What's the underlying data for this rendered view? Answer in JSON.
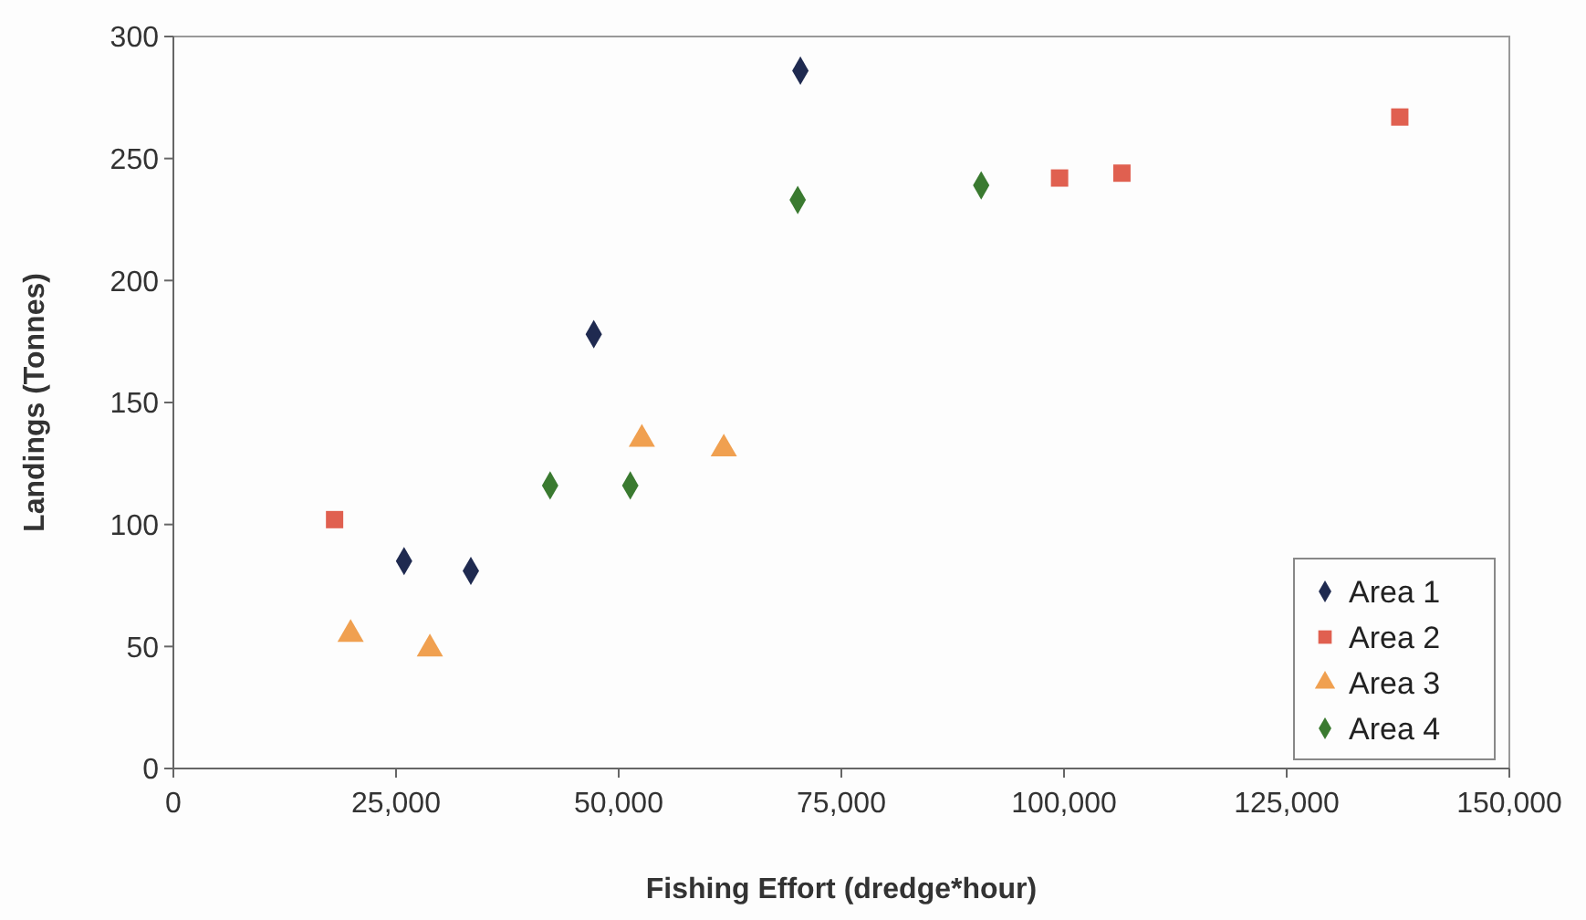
{
  "chart_data": {
    "type": "scatter",
    "xlabel": "Fishing Effort (dredge*hour)",
    "ylabel": "Landings (Tonnes)",
    "xlim": [
      0,
      150000
    ],
    "xticks": [
      {
        "value": 0,
        "label": "0"
      },
      {
        "value": 25000,
        "label": "25,000"
      },
      {
        "value": 50000,
        "label": "50,000"
      },
      {
        "value": 75000,
        "label": "75,000"
      },
      {
        "value": 100000,
        "label": "100,000"
      },
      {
        "value": 125000,
        "label": "125,000"
      },
      {
        "value": 150000,
        "label": "150,000"
      }
    ],
    "ylim": [
      0,
      300
    ],
    "yticks": [
      0,
      50,
      100,
      150,
      200,
      250,
      300
    ],
    "grid": false,
    "legend": "bottom right",
    "series": [
      {
        "name": "Area 1",
        "color": "#1f2a50",
        "marker": "diamond",
        "x": [
          25900,
          33400,
          47200,
          70400
        ],
        "values": [
          85,
          81,
          178,
          286
        ]
      },
      {
        "name": "Area 2",
        "color": "#e06050",
        "marker": "square",
        "x": [
          18100,
          99500,
          106500,
          137700
        ],
        "values": [
          102,
          242,
          244,
          267
        ]
      },
      {
        "name": "Area 3",
        "color": "#f0a050",
        "marker": "triangle",
        "x": [
          19900,
          28800,
          52600,
          61800
        ],
        "values": [
          55,
          49,
          135,
          131
        ]
      },
      {
        "name": "Area 4",
        "color": "#3a7a30",
        "marker": "diamond",
        "x": [
          42300,
          51300,
          70100,
          90700
        ],
        "values": [
          116,
          116,
          233,
          239
        ]
      }
    ]
  }
}
